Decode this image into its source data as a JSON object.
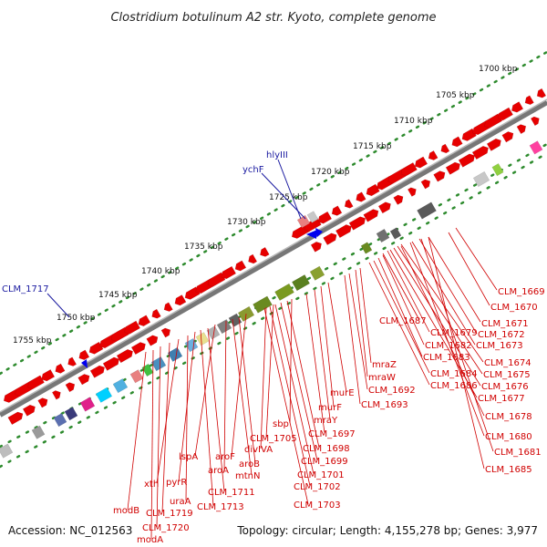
{
  "title": "Clostridium botulinum A2 str. Kyoto, complete genome",
  "footer": {
    "accession": "Accession: NC_012563",
    "topology": "Topology: circular; Length: 4,155,278 bp; Genes: 3,977"
  },
  "kbp_ticks": [
    "1700 kbp",
    "1705 kbp",
    "1710 kbp",
    "1715 kbp",
    "1720 kbp",
    "1725 kbp",
    "1730 kbp",
    "1735 kbp",
    "1740 kbp",
    "1745 kbp",
    "1750 kbp",
    "1755 kbp"
  ],
  "blue_labels": [
    "hlyIII",
    "ychF",
    "CLM_1717"
  ],
  "red_labels": [
    "CLM_1669",
    "CLM_1670",
    "CLM_1671",
    "CLM_1672",
    "CLM_1673",
    "CLM_1674",
    "CLM_1675",
    "CLM_1676",
    "CLM_1677",
    "CLM_1678",
    "CLM_1680",
    "CLM_1681",
    "CLM_1685",
    "CLM_1687",
    "CLM_1679",
    "CLM_1682",
    "CLM_1683",
    "CLM_1684",
    "CLM_1686",
    "mraZ",
    "mraW",
    "CLM_1692",
    "CLM_1693",
    "murE",
    "murF",
    "mraY",
    "CLM_1697",
    "sbp",
    "CLM_1698",
    "CLM_1705",
    "CLM_1699",
    "divIVA",
    "CLM_1701",
    "CLM_1702",
    "CLM_1703",
    "aroF",
    "aroB",
    "mtnN",
    "aroA",
    "lspA",
    "CLM_1711",
    "CLM_1713",
    "pyrR",
    "uraA",
    "xth",
    "CLM_1719",
    "modB",
    "CLM_1720",
    "modA"
  ],
  "colors": {
    "backbone": "#8c8c8c",
    "tick_dots": "#2e8b2e",
    "gene_red": "#e60000",
    "label_red": "#d00000",
    "label_blue": "#1a1aa0"
  }
}
